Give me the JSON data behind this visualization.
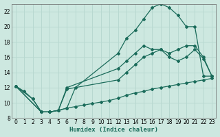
{
  "xlabel": "Humidex (Indice chaleur)",
  "ylabel": "",
  "bg_color": "#cde8e0",
  "grid_color": "#b8d8d0",
  "line_color": "#1a6b5a",
  "xlim": [
    -0.5,
    23.5
  ],
  "ylim": [
    8,
    23
  ],
  "xticks": [
    0,
    1,
    2,
    3,
    4,
    5,
    6,
    7,
    8,
    9,
    10,
    11,
    12,
    13,
    14,
    15,
    16,
    17,
    18,
    19,
    20,
    21,
    22,
    23
  ],
  "yticks": [
    8,
    10,
    12,
    14,
    16,
    18,
    20,
    22
  ],
  "series1_x": [
    0,
    1,
    2,
    3,
    4,
    5,
    6,
    7,
    12,
    13,
    14,
    15,
    16,
    17,
    18,
    19,
    20,
    21,
    22,
    23
  ],
  "series1_y": [
    12.2,
    11.5,
    10.5,
    8.8,
    8.8,
    9.0,
    9.3,
    12.0,
    16.5,
    18.5,
    19.5,
    21.0,
    22.5,
    23.0,
    22.5,
    21.5,
    20.0,
    20.0,
    13.5,
    13.5
  ],
  "series2_x": [
    0,
    3,
    4,
    5,
    6,
    12,
    13,
    14,
    15,
    16,
    17,
    18,
    19,
    20,
    21,
    22,
    23
  ],
  "series2_y": [
    12.2,
    8.8,
    8.8,
    9.0,
    12.0,
    14.5,
    15.5,
    16.5,
    17.5,
    17.0,
    17.0,
    16.5,
    17.0,
    17.5,
    17.5,
    16.0,
    13.5
  ],
  "series3_x": [
    0,
    2,
    3,
    4,
    5,
    6,
    12,
    13,
    14,
    15,
    16,
    17,
    18,
    19,
    20,
    21,
    22,
    23
  ],
  "series3_y": [
    12.2,
    10.5,
    8.8,
    8.8,
    9.0,
    11.8,
    13.0,
    14.0,
    15.0,
    16.0,
    16.5,
    17.0,
    16.0,
    15.5,
    16.0,
    17.0,
    15.8,
    13.5
  ],
  "series4_x": [
    0,
    3,
    4,
    5,
    6,
    7,
    8,
    9,
    10,
    11,
    12,
    13,
    14,
    15,
    16,
    17,
    18,
    19,
    20,
    21,
    22,
    23
  ],
  "series4_y": [
    12.2,
    8.8,
    8.8,
    9.0,
    9.3,
    9.5,
    9.7,
    9.9,
    10.1,
    10.3,
    10.6,
    11.0,
    11.3,
    11.5,
    11.8,
    12.0,
    12.2,
    12.4,
    12.6,
    12.8,
    13.0,
    13.2
  ]
}
